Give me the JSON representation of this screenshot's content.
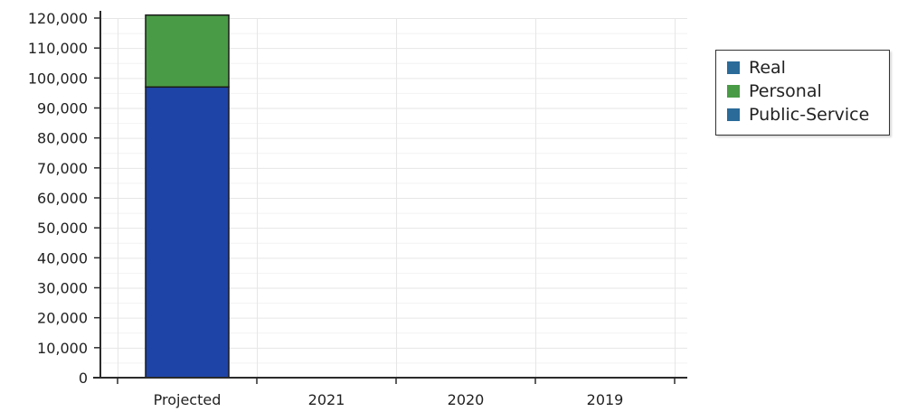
{
  "chart_data": {
    "type": "bar",
    "stacked": true,
    "title": "",
    "xlabel": "",
    "ylabel": "",
    "categories": [
      "Projected",
      "2021",
      "2020",
      "2019"
    ],
    "ylim": [
      0,
      120000
    ],
    "yticks": [
      0,
      10000,
      20000,
      30000,
      40000,
      50000,
      60000,
      70000,
      80000,
      90000,
      100000,
      110000,
      120000
    ],
    "ytick_labels": [
      "0",
      "10,000",
      "20,000",
      "30,000",
      "40,000",
      "50,000",
      "60,000",
      "70,000",
      "80,000",
      "90,000",
      "100,000",
      "110,000",
      "120,000"
    ],
    "grid": true,
    "legend_position": "right",
    "series": [
      {
        "name": "Real",
        "color": "#2a6b9a",
        "values": [
          97000,
          0,
          0,
          0
        ]
      },
      {
        "name": "Personal",
        "color": "#4a9b46",
        "values": [
          24000,
          0,
          0,
          0
        ]
      },
      {
        "name": "Public-Service",
        "color": "#2a6b9a",
        "values": [
          0,
          0,
          0,
          0
        ]
      }
    ],
    "bar_fill_color": "#1f44a8",
    "legend": [
      {
        "label": "Real",
        "color": "#2a6b9a"
      },
      {
        "label": "Personal",
        "color": "#4a9b46"
      },
      {
        "label": "Public-Service",
        "color": "#2a6b9a"
      }
    ]
  }
}
